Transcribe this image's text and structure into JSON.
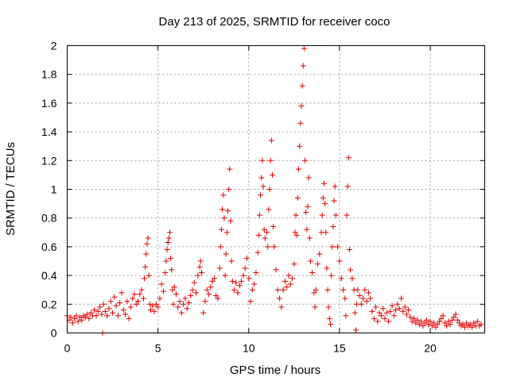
{
  "chart_data": {
    "type": "scatter",
    "title": "Day 213 of 2025, SRMTID for receiver coco",
    "xlabel": "GPS time / hours",
    "ylabel": "SRMTID / TECUs",
    "xlim": [
      0,
      23
    ],
    "ylim": [
      0,
      2
    ],
    "xticks": [
      0,
      5,
      10,
      15,
      20
    ],
    "xtick_labels": [
      "0",
      "5",
      "10",
      "15",
      "20"
    ],
    "yticks": [
      0,
      0.2,
      0.4,
      0.6,
      0.8,
      1,
      1.2,
      1.4,
      1.6,
      1.8,
      2
    ],
    "ytick_labels": [
      "0",
      "0.2",
      "0.4",
      "0.6",
      "0.8",
      "1",
      "1.2",
      "1.4",
      "1.6",
      "1.8",
      "2"
    ],
    "grid": true,
    "marker": "+",
    "color": "#e00000",
    "series": [
      {
        "name": "SRMTID",
        "points": [
          [
            0.0,
            0.12
          ],
          [
            0.1,
            0.09
          ],
          [
            0.2,
            0.11
          ],
          [
            0.3,
            0.07
          ],
          [
            0.4,
            0.1
          ],
          [
            0.5,
            0.12
          ],
          [
            0.6,
            0.08
          ],
          [
            0.7,
            0.11
          ],
          [
            0.8,
            0.09
          ],
          [
            0.9,
            0.12
          ],
          [
            1.0,
            0.11
          ],
          [
            1.1,
            0.13
          ],
          [
            1.2,
            0.1
          ],
          [
            1.3,
            0.14
          ],
          [
            1.4,
            0.12
          ],
          [
            1.5,
            0.16
          ],
          [
            1.6,
            0.12
          ],
          [
            1.7,
            0.15
          ],
          [
            1.8,
            0.18
          ],
          [
            1.9,
            0.13
          ],
          [
            1.95,
            0.0
          ],
          [
            2.0,
            0.2
          ],
          [
            2.1,
            0.15
          ],
          [
            2.2,
            0.12
          ],
          [
            2.3,
            0.17
          ],
          [
            2.4,
            0.22
          ],
          [
            2.5,
            0.14
          ],
          [
            2.6,
            0.25
          ],
          [
            2.7,
            0.19
          ],
          [
            2.8,
            0.12
          ],
          [
            2.9,
            0.21
          ],
          [
            3.0,
            0.28
          ],
          [
            3.1,
            0.16
          ],
          [
            3.2,
            0.13
          ],
          [
            3.3,
            0.22
          ],
          [
            3.4,
            0.1
          ],
          [
            3.5,
            0.18
          ],
          [
            3.6,
            0.24
          ],
          [
            3.7,
            0.27
          ],
          [
            3.8,
            0.2
          ],
          [
            3.9,
            0.22
          ],
          [
            4.0,
            0.27
          ],
          [
            4.1,
            0.3
          ],
          [
            4.2,
            0.24
          ],
          [
            4.25,
            0.38
          ],
          [
            4.3,
            0.46
          ],
          [
            4.35,
            0.55
          ],
          [
            4.4,
            0.62
          ],
          [
            4.45,
            0.66
          ],
          [
            4.5,
            0.4
          ],
          [
            4.55,
            0.2
          ],
          [
            4.6,
            0.16
          ],
          [
            4.7,
            0.19
          ],
          [
            4.8,
            0.15
          ],
          [
            4.9,
            0.2
          ],
          [
            5.0,
            0.18
          ],
          [
            5.1,
            0.24
          ],
          [
            5.2,
            0.34
          ],
          [
            5.3,
            0.29
          ],
          [
            5.4,
            0.42
          ],
          [
            5.45,
            0.5
          ],
          [
            5.5,
            0.58
          ],
          [
            5.55,
            0.63
          ],
          [
            5.6,
            0.66
          ],
          [
            5.65,
            0.7
          ],
          [
            5.7,
            0.52
          ],
          [
            5.75,
            0.44
          ],
          [
            5.8,
            0.3
          ],
          [
            5.85,
            0.2
          ],
          [
            5.9,
            0.32
          ],
          [
            6.0,
            0.27
          ],
          [
            6.1,
            0.18
          ],
          [
            6.2,
            0.22
          ],
          [
            6.3,
            0.14
          ],
          [
            6.4,
            0.2
          ],
          [
            6.5,
            0.24
          ],
          [
            6.6,
            0.17
          ],
          [
            6.7,
            0.21
          ],
          [
            6.8,
            0.26
          ],
          [
            6.9,
            0.3
          ],
          [
            7.0,
            0.35
          ],
          [
            7.1,
            0.28
          ],
          [
            7.2,
            0.4
          ],
          [
            7.3,
            0.46
          ],
          [
            7.35,
            0.5
          ],
          [
            7.4,
            0.42
          ],
          [
            7.5,
            0.14
          ],
          [
            7.6,
            0.22
          ],
          [
            7.7,
            0.3
          ],
          [
            7.8,
            0.27
          ],
          [
            7.9,
            0.32
          ],
          [
            8.0,
            0.36
          ],
          [
            8.1,
            0.38
          ],
          [
            8.2,
            0.26
          ],
          [
            8.3,
            0.24
          ],
          [
            8.4,
            0.45
          ],
          [
            8.45,
            0.6
          ],
          [
            8.5,
            0.72
          ],
          [
            8.55,
            0.86
          ],
          [
            8.6,
            0.96
          ],
          [
            8.65,
            0.8
          ],
          [
            8.7,
            0.4
          ],
          [
            8.75,
            0.55
          ],
          [
            8.8,
            0.7
          ],
          [
            8.85,
            0.85
          ],
          [
            8.9,
            1.0
          ],
          [
            8.95,
            1.14
          ],
          [
            9.0,
            0.78
          ],
          [
            9.05,
            0.5
          ],
          [
            9.1,
            0.36
          ],
          [
            9.2,
            0.3
          ],
          [
            9.3,
            0.35
          ],
          [
            9.4,
            0.28
          ],
          [
            9.5,
            0.33
          ],
          [
            9.6,
            0.36
          ],
          [
            9.7,
            0.4
          ],
          [
            9.8,
            0.45
          ],
          [
            9.9,
            0.52
          ],
          [
            10.0,
            0.38
          ],
          [
            10.1,
            0.22
          ],
          [
            10.2,
            0.3
          ],
          [
            10.3,
            0.34
          ],
          [
            10.4,
            0.42
          ],
          [
            10.5,
            0.56
          ],
          [
            10.55,
            0.68
          ],
          [
            10.6,
            0.82
          ],
          [
            10.65,
            0.96
          ],
          [
            10.7,
            1.08
          ],
          [
            10.75,
            1.2
          ],
          [
            10.8,
            1.02
          ],
          [
            10.85,
            0.72
          ],
          [
            10.9,
            0.66
          ],
          [
            11.0,
            0.7
          ],
          [
            11.05,
            0.6
          ],
          [
            11.1,
            0.86
          ],
          [
            11.15,
            1.0
          ],
          [
            11.2,
            1.2
          ],
          [
            11.25,
            1.34
          ],
          [
            11.3,
            1.1
          ],
          [
            11.35,
            0.74
          ],
          [
            11.4,
            0.6
          ],
          [
            11.5,
            0.44
          ],
          [
            11.6,
            0.3
          ],
          [
            11.7,
            0.24
          ],
          [
            11.8,
            0.18
          ],
          [
            11.9,
            0.3
          ],
          [
            12.0,
            0.36
          ],
          [
            12.1,
            0.32
          ],
          [
            12.2,
            0.4
          ],
          [
            12.3,
            0.34
          ],
          [
            12.4,
            0.38
          ],
          [
            12.5,
            0.48
          ],
          [
            12.55,
            0.7
          ],
          [
            12.6,
            0.82
          ],
          [
            12.65,
            0.68
          ],
          [
            12.7,
            0.94
          ],
          [
            12.75,
            1.14
          ],
          [
            12.8,
            1.3
          ],
          [
            12.85,
            1.46
          ],
          [
            12.9,
            1.58
          ],
          [
            12.95,
            1.72
          ],
          [
            13.0,
            1.86
          ],
          [
            13.05,
            1.98
          ],
          [
            13.1,
            1.2
          ],
          [
            13.15,
            0.84
          ],
          [
            13.2,
            0.72
          ],
          [
            13.25,
            0.88
          ],
          [
            13.3,
            1.08
          ],
          [
            13.35,
            0.66
          ],
          [
            13.4,
            0.5
          ],
          [
            13.5,
            0.42
          ],
          [
            13.6,
            0.28
          ],
          [
            13.65,
            0.18
          ],
          [
            13.7,
            0.3
          ],
          [
            13.8,
            0.48
          ],
          [
            13.9,
            0.55
          ],
          [
            14.0,
            0.7
          ],
          [
            14.05,
            0.82
          ],
          [
            14.1,
            0.94
          ],
          [
            14.15,
            1.04
          ],
          [
            14.2,
            0.9
          ],
          [
            14.25,
            0.7
          ],
          [
            14.3,
            0.45
          ],
          [
            14.35,
            0.3
          ],
          [
            14.4,
            0.18
          ],
          [
            14.45,
            0.1
          ],
          [
            14.5,
            0.06
          ],
          [
            14.55,
            0.4
          ],
          [
            14.6,
            0.6
          ],
          [
            14.65,
            0.74
          ],
          [
            14.7,
            0.92
          ],
          [
            14.75,
            1.02
          ],
          [
            14.8,
            0.82
          ],
          [
            14.9,
            0.6
          ],
          [
            15.0,
            0.5
          ],
          [
            15.1,
            0.38
          ],
          [
            15.2,
            0.3
          ],
          [
            15.3,
            0.24
          ],
          [
            15.35,
            0.12
          ],
          [
            15.4,
            0.82
          ],
          [
            15.45,
            1.02
          ],
          [
            15.5,
            1.22
          ],
          [
            15.55,
            0.58
          ],
          [
            15.6,
            0.44
          ],
          [
            15.7,
            0.38
          ],
          [
            15.8,
            0.3
          ],
          [
            15.85,
            0.14
          ],
          [
            15.9,
            0.02
          ],
          [
            15.95,
            0.2
          ],
          [
            16.0,
            0.3
          ],
          [
            16.1,
            0.26
          ],
          [
            16.2,
            0.2
          ],
          [
            16.3,
            0.24
          ],
          [
            16.4,
            0.3
          ],
          [
            16.5,
            0.22
          ],
          [
            16.6,
            0.28
          ],
          [
            16.7,
            0.24
          ],
          [
            16.8,
            0.15
          ],
          [
            16.9,
            0.1
          ],
          [
            17.0,
            0.18
          ],
          [
            17.1,
            0.08
          ],
          [
            17.2,
            0.14
          ],
          [
            17.3,
            0.12
          ],
          [
            17.4,
            0.17
          ],
          [
            17.5,
            0.1
          ],
          [
            17.6,
            0.14
          ],
          [
            17.7,
            0.08
          ],
          [
            17.8,
            0.15
          ],
          [
            17.9,
            0.19
          ],
          [
            18.0,
            0.12
          ],
          [
            18.1,
            0.16
          ],
          [
            18.2,
            0.2
          ],
          [
            18.3,
            0.17
          ],
          [
            18.4,
            0.24
          ],
          [
            18.5,
            0.15
          ],
          [
            18.6,
            0.18
          ],
          [
            18.7,
            0.13
          ],
          [
            18.8,
            0.16
          ],
          [
            18.9,
            0.11
          ],
          [
            19.0,
            0.08
          ],
          [
            19.1,
            0.1
          ],
          [
            19.2,
            0.07
          ],
          [
            19.3,
            0.09
          ],
          [
            19.4,
            0.06
          ],
          [
            19.5,
            0.08
          ],
          [
            19.6,
            0.05
          ],
          [
            19.7,
            0.07
          ],
          [
            19.8,
            0.09
          ],
          [
            19.9,
            0.06
          ],
          [
            20.0,
            0.08
          ],
          [
            20.1,
            0.05
          ],
          [
            20.2,
            0.07
          ],
          [
            20.3,
            0.04
          ],
          [
            20.4,
            0.06
          ],
          [
            20.5,
            0.08
          ],
          [
            20.6,
            0.1
          ],
          [
            20.7,
            0.12
          ],
          [
            20.8,
            0.07
          ],
          [
            20.9,
            0.05
          ],
          [
            21.0,
            0.08
          ],
          [
            21.1,
            0.06
          ],
          [
            21.2,
            0.09
          ],
          [
            21.3,
            0.11
          ],
          [
            21.4,
            0.13
          ],
          [
            21.5,
            0.09
          ],
          [
            21.6,
            0.07
          ],
          [
            21.7,
            0.05
          ],
          [
            21.8,
            0.06
          ],
          [
            21.9,
            0.04
          ],
          [
            22.0,
            0.07
          ],
          [
            22.1,
            0.05
          ],
          [
            22.2,
            0.06
          ],
          [
            22.3,
            0.04
          ],
          [
            22.4,
            0.07
          ],
          [
            22.5,
            0.05
          ],
          [
            22.6,
            0.08
          ],
          [
            22.7,
            0.05
          ],
          [
            22.8,
            0.06
          ]
        ]
      }
    ]
  }
}
